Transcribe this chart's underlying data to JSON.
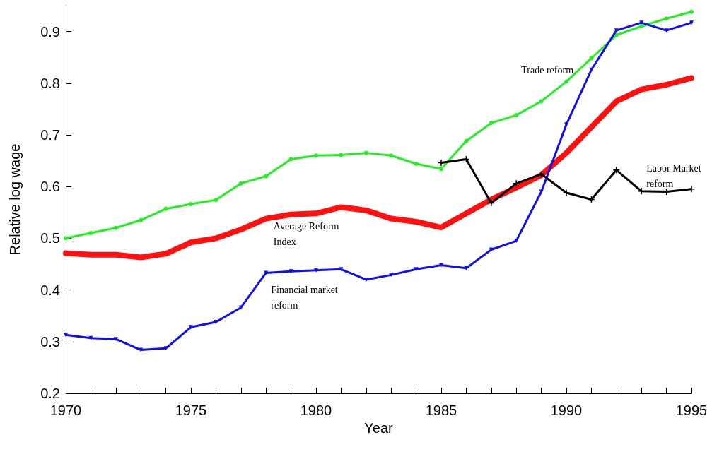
{
  "chart_data": {
    "type": "line",
    "xlabel": "Year",
    "ylabel": "Relative log wage",
    "x": [
      1970,
      1971,
      1972,
      1973,
      1974,
      1975,
      1976,
      1977,
      1978,
      1979,
      1980,
      1981,
      1982,
      1983,
      1984,
      1985,
      1986,
      1987,
      1988,
      1989,
      1990,
      1991,
      1992,
      1993,
      1994,
      1995
    ],
    "series": [
      {
        "name": "Trade reform",
        "color": "#22ee22",
        "marker": "circle",
        "values": [
          0.5,
          0.51,
          0.52,
          0.535,
          0.557,
          0.566,
          0.574,
          0.606,
          0.62,
          0.653,
          0.66,
          0.661,
          0.665,
          0.66,
          0.644,
          0.634,
          0.688,
          0.723,
          0.738,
          0.765,
          0.803,
          0.848,
          0.893,
          0.91,
          0.925,
          0.938
        ]
      },
      {
        "name": "Average Reform Index",
        "color": "#ff1010",
        "marker": "none",
        "values": [
          0.471,
          0.468,
          0.468,
          0.463,
          0.47,
          0.492,
          0.5,
          0.517,
          0.538,
          0.546,
          0.548,
          0.56,
          0.554,
          0.538,
          0.532,
          0.521,
          0.548,
          0.575,
          0.598,
          0.622,
          0.665,
          0.715,
          0.765,
          0.788,
          0.797,
          0.81
        ]
      },
      {
        "name": "Financial market reform",
        "color": "#1010ee",
        "marker": "triangle",
        "values": [
          0.313,
          0.307,
          0.305,
          0.284,
          0.287,
          0.328,
          0.338,
          0.366,
          0.433,
          0.436,
          0.438,
          0.44,
          0.42,
          0.429,
          0.44,
          0.448,
          0.442,
          0.478,
          0.495,
          0.59,
          0.72,
          0.826,
          0.902,
          0.917,
          0.902,
          0.917
        ]
      },
      {
        "name": "Labor Market reform",
        "color": "#000000",
        "marker": "cross",
        "x": [
          1985,
          1986,
          1987,
          1988,
          1989,
          1990,
          1991,
          1992,
          1993,
          1994,
          1995
        ],
        "values": [
          0.646,
          0.653,
          0.568,
          0.606,
          0.624,
          0.588,
          0.575,
          0.632,
          0.591,
          0.59,
          0.595
        ]
      }
    ],
    "xlim": [
      1970,
      1995
    ],
    "xticks": [
      1970,
      {
        "value": 1971,
        "label": null
      },
      {
        "value": 1972,
        "label": null
      },
      {
        "value": 1973,
        "label": null
      },
      {
        "value": 1974,
        "label": null
      },
      1975,
      {
        "value": 1976,
        "label": null
      },
      {
        "value": 1977,
        "label": null
      },
      {
        "value": 1978,
        "label": null
      },
      {
        "value": 1979,
        "label": null
      },
      1980,
      {
        "value": 1981,
        "label": null
      },
      {
        "value": 1982,
        "label": null
      },
      {
        "value": 1983,
        "label": null
      },
      {
        "value": 1984,
        "label": null
      },
      1985,
      {
        "value": 1986,
        "label": null
      },
      {
        "value": 1987,
        "label": null
      },
      {
        "value": 1988,
        "label": null
      },
      {
        "value": 1989,
        "label": null
      },
      1990,
      {
        "value": 1991,
        "label": null
      },
      {
        "value": 1992,
        "label": null
      },
      {
        "value": 1993,
        "label": null
      },
      {
        "value": 1994,
        "label": null
      },
      1995
    ],
    "ylim": [
      0.2,
      0.95
    ],
    "yticks": [
      0.2,
      0.3,
      0.4,
      0.5,
      0.6,
      0.7,
      0.8,
      0.9
    ],
    "grid": false
  }
}
